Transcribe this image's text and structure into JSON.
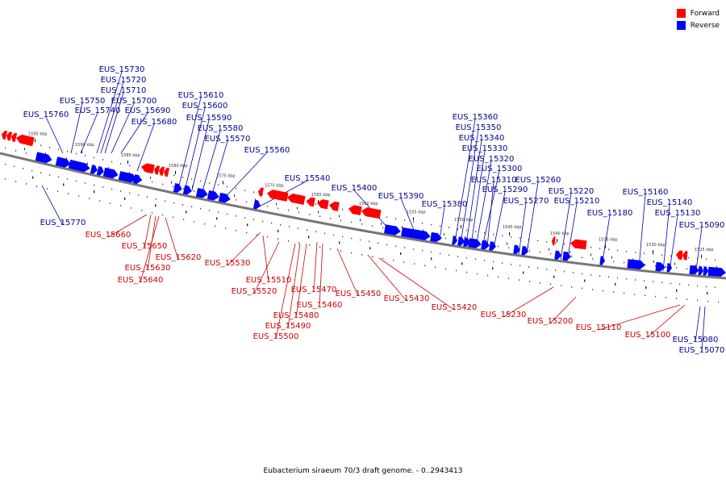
{
  "legend": {
    "forward_label": "Forward",
    "reverse_label": "Reverse",
    "forward_color": "#ff0000",
    "reverse_color": "#0000ff"
  },
  "caption": "Eubacterium siraeum 70/3 draft genome. - 0..2943413",
  "scale_ticks": [
    "1595 kbp",
    "1590 kbp",
    "1585 kbp",
    "1580 kbp",
    "1575 kbp",
    "1570 kbp",
    "1565 kbp",
    "1560 kbp",
    "1555 kbp",
    "1550 kbp",
    "1545 kbp",
    "1540 kbp",
    "1535 kbp",
    "1530 kbp",
    "1525 kbp"
  ],
  "genes_reverse": [
    "EUS_15760",
    "EUS_15750",
    "EUS_15740",
    "EUS_15730",
    "EUS_15720",
    "EUS_15710",
    "EUS_15700",
    "EUS_15690",
    "EUS_15680",
    "EUS_15610",
    "EUS_15600",
    "EUS_15590",
    "EUS_15580",
    "EUS_15570",
    "EUS_15560",
    "EUS_15540",
    "EUS_15400",
    "EUS_15390",
    "EUS_15380",
    "EUS_15360",
    "EUS_15350",
    "EUS_15340",
    "EUS_15330",
    "EUS_15320",
    "EUS_15300",
    "EUS_15310",
    "EUS_15290",
    "EUS_15270",
    "EUS_15260",
    "EUS_15220",
    "EUS_15210",
    "EUS_15180",
    "EUS_15160",
    "EUS_15140",
    "EUS_15130",
    "EUS_15090",
    "EUS_15770",
    "EUS_15080",
    "EUS_15070"
  ],
  "genes_forward": [
    "EUS_15660",
    "EUS_15650",
    "EUS_15620",
    "EUS_15630",
    "EUS_15640",
    "EUS_15530",
    "EUS_15510",
    "EUS_15520",
    "EUS_15470",
    "EUS_15460",
    "EUS_15480",
    "EUS_15490",
    "EUS_15500",
    "EUS_15450",
    "EUS_15430",
    "EUS_15420",
    "EUS_15230",
    "EUS_15200",
    "EUS_15110",
    "EUS_15100"
  ]
}
